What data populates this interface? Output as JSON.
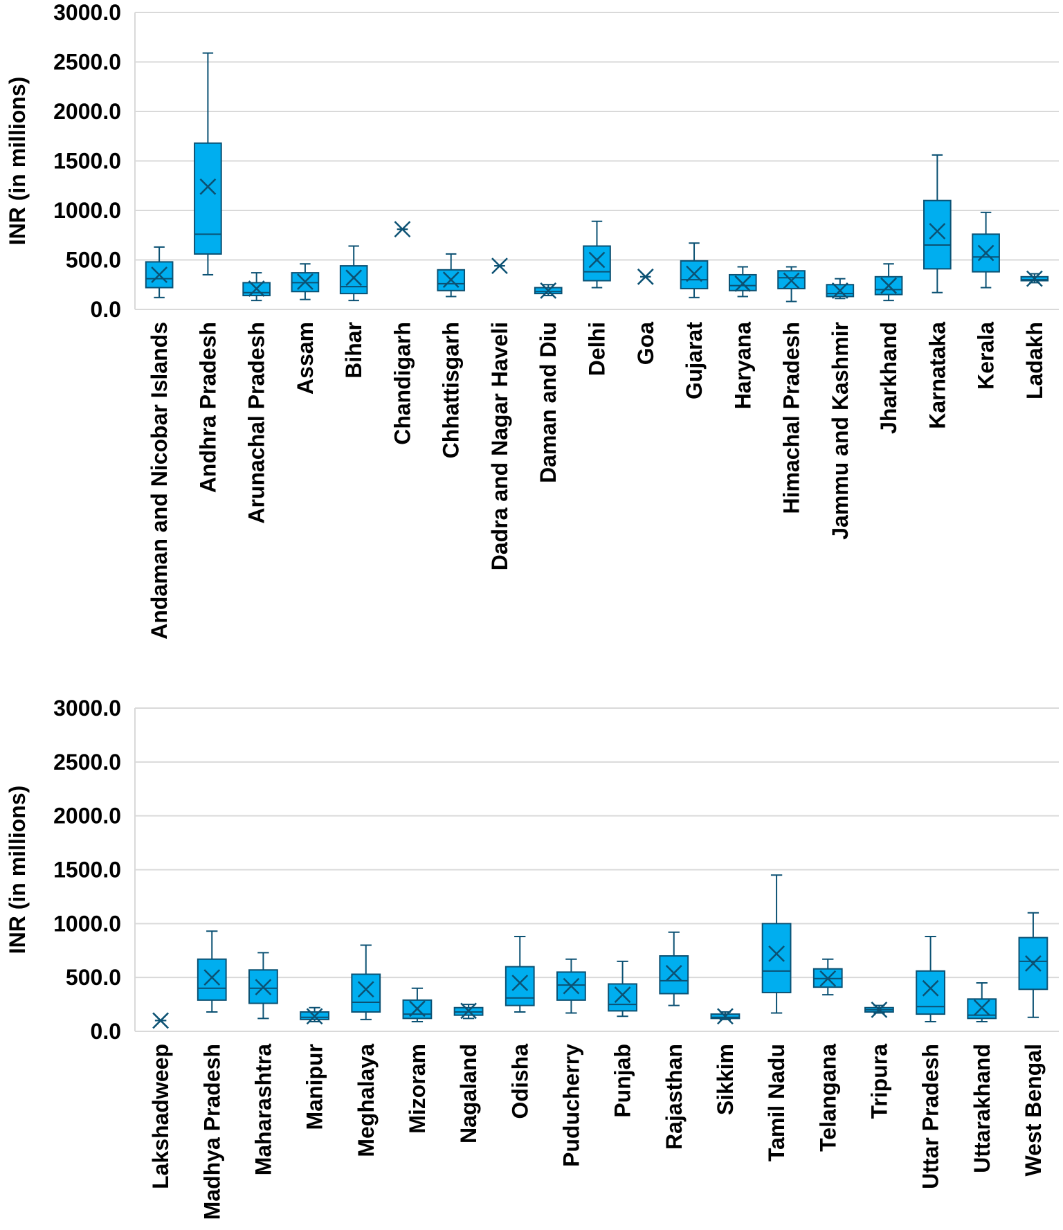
{
  "colors": {
    "box_fill": "#00AEEF",
    "box_stroke": "#0B5173",
    "grid": "#D9D9D9",
    "text": "#000000"
  },
  "chart_data": [
    {
      "type": "box",
      "ylabel": "INR (in millions)",
      "ylim": [
        0,
        3000
      ],
      "ticks": [
        "0.0",
        "500.0",
        "1000.0",
        "1500.0",
        "2000.0",
        "2500.0",
        "3000.0"
      ],
      "tick_values": [
        0,
        500,
        1000,
        1500,
        2000,
        2500,
        3000
      ],
      "categories": [
        "Andaman and Nicobar Islands",
        "Andhra Pradesh",
        "Arunachal Pradesh",
        "Assam",
        "Bihar",
        "Chandigarh",
        "Chhattisgarh",
        "Dadra and Nagar Haveli",
        "Daman and Diu",
        "Delhi",
        "Goa",
        "Gujarat",
        "Haryana",
        "Himachal Pradesh",
        "Jammu and Kashmir",
        "Jharkhand",
        "Karnataka",
        "Kerala",
        "Ladakh"
      ],
      "boxes": [
        {
          "min": 120,
          "q1": 220,
          "median": 310,
          "q3": 480,
          "max": 630,
          "mean": 350
        },
        {
          "min": 350,
          "q1": 560,
          "median": 760,
          "q3": 1680,
          "max": 2590,
          "mean": 1240
        },
        {
          "min": 90,
          "q1": 140,
          "median": 170,
          "q3": 270,
          "max": 370,
          "mean": 210
        },
        {
          "min": 100,
          "q1": 180,
          "median": 270,
          "q3": 370,
          "max": 460,
          "mean": 280
        },
        {
          "min": 90,
          "q1": 160,
          "median": 230,
          "q3": 440,
          "max": 640,
          "mean": 320
        },
        {
          "min": 810,
          "q1": 810,
          "median": 810,
          "q3": 810,
          "max": 810,
          "mean": 810
        },
        {
          "min": 130,
          "q1": 190,
          "median": 260,
          "q3": 400,
          "max": 560,
          "mean": 300
        },
        {
          "min": 440,
          "q1": 440,
          "median": 440,
          "q3": 440,
          "max": 440,
          "mean": 440
        },
        {
          "min": 140,
          "q1": 160,
          "median": 180,
          "q3": 220,
          "max": 250,
          "mean": 190
        },
        {
          "min": 220,
          "q1": 290,
          "median": 380,
          "q3": 640,
          "max": 890,
          "mean": 500
        },
        {
          "min": 330,
          "q1": 330,
          "median": 330,
          "q3": 330,
          "max": 330,
          "mean": 330
        },
        {
          "min": 120,
          "q1": 210,
          "median": 300,
          "q3": 490,
          "max": 670,
          "mean": 360
        },
        {
          "min": 130,
          "q1": 190,
          "median": 240,
          "q3": 350,
          "max": 430,
          "mean": 260
        },
        {
          "min": 80,
          "q1": 210,
          "median": 320,
          "q3": 390,
          "max": 430,
          "mean": 290
        },
        {
          "min": 110,
          "q1": 130,
          "median": 160,
          "q3": 250,
          "max": 310,
          "mean": 190
        },
        {
          "min": 90,
          "q1": 150,
          "median": 200,
          "q3": 330,
          "max": 460,
          "mean": 240
        },
        {
          "min": 170,
          "q1": 410,
          "median": 650,
          "q3": 1100,
          "max": 1560,
          "mean": 790
        },
        {
          "min": 220,
          "q1": 380,
          "median": 530,
          "q3": 760,
          "max": 980,
          "mean": 570
        },
        {
          "min": 270,
          "q1": 290,
          "median": 300,
          "q3": 330,
          "max": 360,
          "mean": 310
        }
      ]
    },
    {
      "type": "box",
      "ylabel": "INR (in millions)",
      "ylim": [
        0,
        3000
      ],
      "ticks": [
        "0.0",
        "500.0",
        "1000.0",
        "1500.0",
        "2000.0",
        "2500.0",
        "3000.0"
      ],
      "tick_values": [
        0,
        500,
        1000,
        1500,
        2000,
        2500,
        3000
      ],
      "categories": [
        "Lakshadweep",
        "Madhya Pradesh",
        "Maharashtra",
        "Manipur",
        "Meghalaya",
        "Mizoram",
        "Nagaland",
        "Odisha",
        "Puducherry",
        "Punjab",
        "Rajasthan",
        "Sikkim",
        "Tamil Nadu",
        "Telangana",
        "Tripura",
        "Uttar Pradesh",
        "Uttarakhand",
        "West Bengal"
      ],
      "boxes": [
        {
          "min": 100,
          "q1": 100,
          "median": 100,
          "q3": 100,
          "max": 100,
          "mean": 100
        },
        {
          "min": 180,
          "q1": 290,
          "median": 400,
          "q3": 670,
          "max": 930,
          "mean": 500
        },
        {
          "min": 120,
          "q1": 260,
          "median": 400,
          "q3": 570,
          "max": 730,
          "mean": 410
        },
        {
          "min": 90,
          "q1": 110,
          "median": 130,
          "q3": 180,
          "max": 220,
          "mean": 140
        },
        {
          "min": 110,
          "q1": 180,
          "median": 270,
          "q3": 530,
          "max": 800,
          "mean": 390
        },
        {
          "min": 90,
          "q1": 120,
          "median": 160,
          "q3": 290,
          "max": 400,
          "mean": 210
        },
        {
          "min": 120,
          "q1": 150,
          "median": 180,
          "q3": 220,
          "max": 250,
          "mean": 190
        },
        {
          "min": 180,
          "q1": 240,
          "median": 310,
          "q3": 600,
          "max": 880,
          "mean": 450
        },
        {
          "min": 170,
          "q1": 290,
          "median": 430,
          "q3": 550,
          "max": 670,
          "mean": 420
        },
        {
          "min": 140,
          "q1": 190,
          "median": 250,
          "q3": 440,
          "max": 650,
          "mean": 340
        },
        {
          "min": 240,
          "q1": 350,
          "median": 470,
          "q3": 700,
          "max": 920,
          "mean": 540
        },
        {
          "min": 110,
          "q1": 120,
          "median": 130,
          "q3": 160,
          "max": 180,
          "mean": 140
        },
        {
          "min": 170,
          "q1": 360,
          "median": 560,
          "q3": 1000,
          "max": 1450,
          "mean": 720
        },
        {
          "min": 340,
          "q1": 410,
          "median": 490,
          "q3": 580,
          "max": 670,
          "mean": 490
        },
        {
          "min": 170,
          "q1": 180,
          "median": 200,
          "q3": 220,
          "max": 240,
          "mean": 200
        },
        {
          "min": 90,
          "q1": 160,
          "median": 230,
          "q3": 560,
          "max": 880,
          "mean": 400
        },
        {
          "min": 90,
          "q1": 120,
          "median": 150,
          "q3": 300,
          "max": 450,
          "mean": 220
        },
        {
          "min": 130,
          "q1": 390,
          "median": 650,
          "q3": 870,
          "max": 1100,
          "mean": 630
        }
      ]
    }
  ]
}
